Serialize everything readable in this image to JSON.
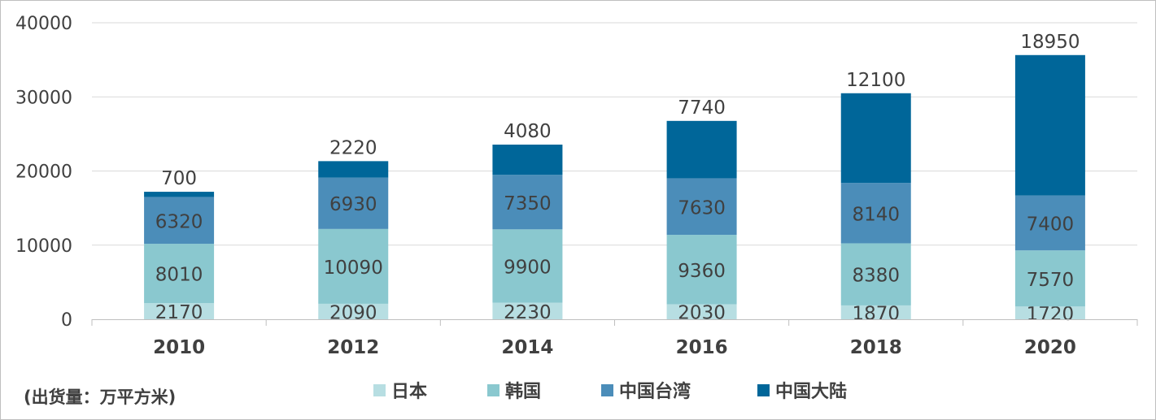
{
  "chart_data": {
    "type": "bar",
    "stacked": true,
    "unit_note": "(出货量：万平方米)",
    "categories": [
      "2010",
      "2012",
      "2014",
      "2016",
      "2018",
      "2020"
    ],
    "series": [
      {
        "name": "日本",
        "color": "#b7dee2",
        "values": [
          2170,
          2090,
          2230,
          2030,
          1870,
          1720
        ]
      },
      {
        "name": "韩国",
        "color": "#8ac8cf",
        "values": [
          8010,
          10090,
          9900,
          9360,
          8380,
          7570
        ]
      },
      {
        "name": "中国台湾",
        "color": "#4b8db9",
        "values": [
          6320,
          6930,
          7350,
          7630,
          8140,
          7400
        ]
      },
      {
        "name": "中国大陆",
        "color": "#006699",
        "values": [
          700,
          2220,
          4080,
          7740,
          12100,
          18950
        ]
      }
    ],
    "ylim": [
      0,
      40000
    ],
    "yticks": [
      "0",
      "10000",
      "20000",
      "30000",
      "40000"
    ],
    "grid": true,
    "legend": "bottom"
  }
}
